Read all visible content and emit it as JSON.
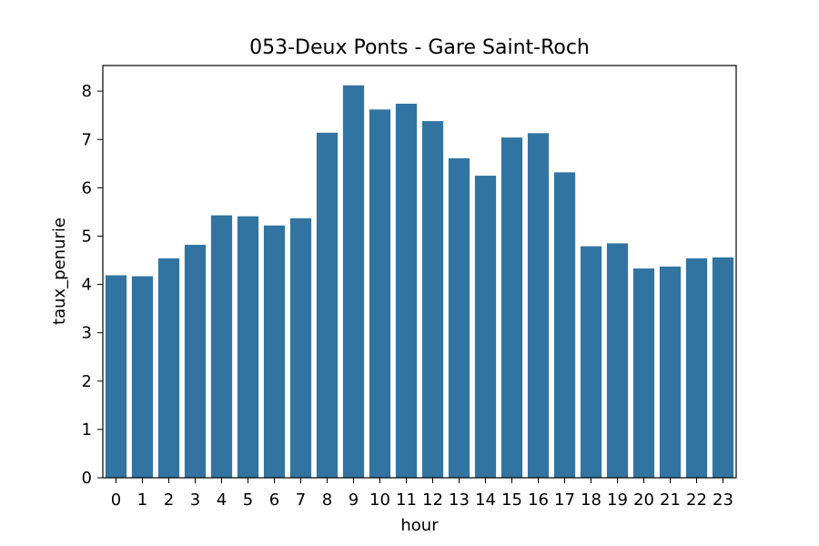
{
  "chart_data": {
    "type": "bar",
    "title": "053-Deux Ponts - Gare Saint-Roch",
    "xlabel": "hour",
    "ylabel": "taux_penurie",
    "categories": [
      "0",
      "1",
      "2",
      "3",
      "4",
      "5",
      "6",
      "7",
      "8",
      "9",
      "10",
      "11",
      "12",
      "13",
      "14",
      "15",
      "16",
      "17",
      "18",
      "19",
      "20",
      "21",
      "22",
      "23"
    ],
    "values": [
      4.19,
      4.17,
      4.54,
      4.82,
      5.43,
      5.41,
      5.22,
      5.37,
      7.14,
      8.12,
      7.62,
      7.74,
      7.38,
      6.61,
      6.25,
      7.04,
      7.13,
      6.32,
      4.79,
      4.85,
      4.33,
      4.37,
      4.54,
      4.56
    ],
    "yticks": [
      "0",
      "1",
      "2",
      "3",
      "4",
      "5",
      "6",
      "7",
      "8"
    ],
    "ylim": [
      0,
      8.53
    ],
    "bar_color": "#3274a1",
    "grid": false,
    "legend": "none"
  }
}
